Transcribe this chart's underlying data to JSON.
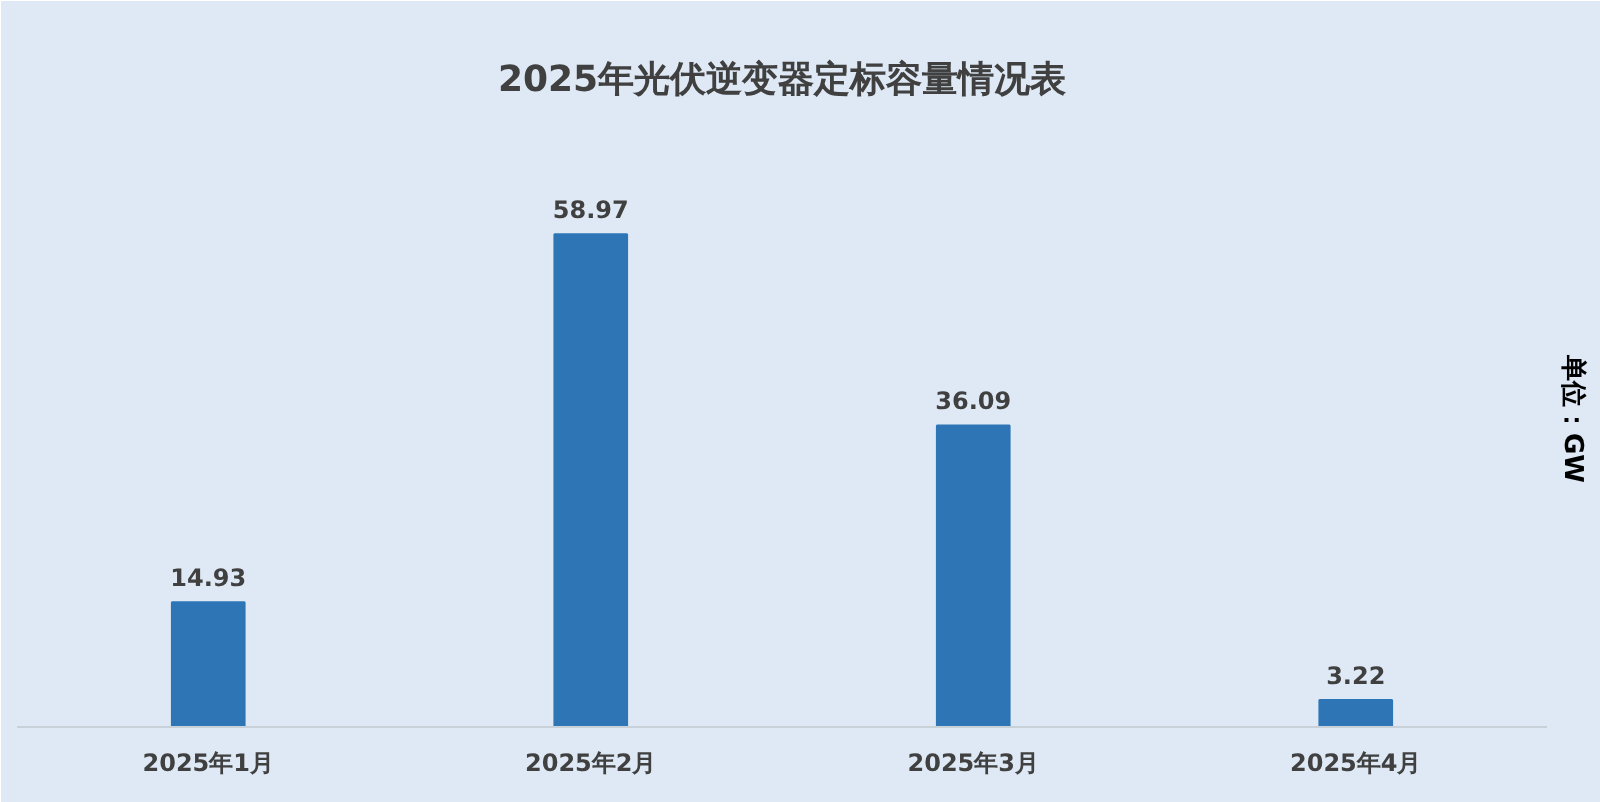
{
  "chart_data": {
    "type": "bar",
    "title": "2025年光伏逆变器定标容量情况表",
    "ylabel": "单位：GW",
    "categories": [
      "2025年1月",
      "2025年2月",
      "2025年3月",
      "2025年4月"
    ],
    "values": [
      14.93,
      58.97,
      36.09,
      3.22
    ],
    "color": "#2e75b6",
    "data_labels": true,
    "grid": false
  }
}
